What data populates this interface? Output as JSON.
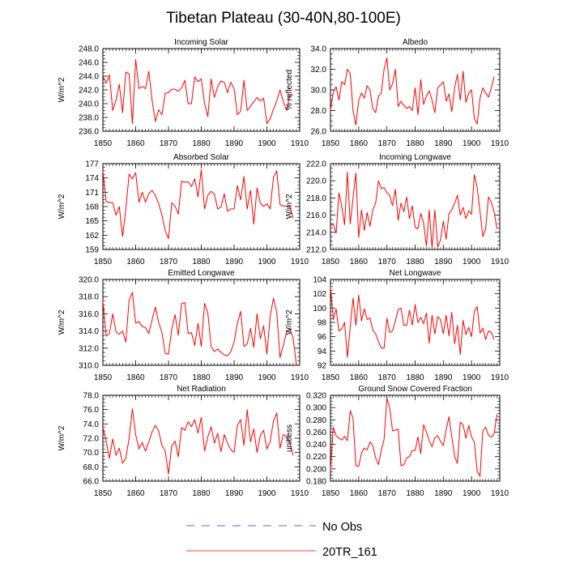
{
  "figure_title": "Tibetan Plateau (30-40N,80-100E)",
  "colors": {
    "model": "#ff0000",
    "obs": "#3333cc",
    "frame": "#000000"
  },
  "legend": {
    "obs_label": "No Obs",
    "model_label": "20TR_161"
  },
  "chart_data": [
    {
      "type": "line",
      "title": "Incoming Solar",
      "ylabel": "W/m^2",
      "xlim": [
        1850,
        1910
      ],
      "ylim": [
        236,
        248
      ],
      "yticks": [
        "236.0",
        "238.0",
        "240.0",
        "242.0",
        "244.0",
        "246.0",
        "248.0"
      ],
      "xticks": [
        "1850",
        "1860",
        "1870",
        "1880",
        "1890",
        "1900",
        "1910"
      ],
      "x_start": 1850,
      "series": [
        {
          "name": "20TR_161",
          "values": [
            244.0,
            243.0,
            244.2,
            239.0,
            240.5,
            242.8,
            238.7,
            244.6,
            244.3,
            237.1,
            246.4,
            242.2,
            242.5,
            242.2,
            244.7,
            240.5,
            237.4,
            239.1,
            238.4,
            241.5,
            241.6,
            242.1,
            242.1,
            241.8,
            242.3,
            243.4,
            240.0,
            240.0,
            243.9,
            243.2,
            243.6,
            240.0,
            238.1,
            243.6,
            240.9,
            242.5,
            243.3,
            243.1,
            241.6,
            243.1,
            242.2,
            238.4,
            238.9,
            243.4,
            239.0,
            239.6,
            240.3,
            240.9,
            240.4,
            240.8,
            237.1,
            237.8,
            239.2,
            240.4,
            242.0,
            240.3,
            239.0,
            241.3,
            241.3
          ]
        }
      ]
    },
    {
      "type": "line",
      "title": "Albedo",
      "ylabel": "% reflected",
      "xlim": [
        1850,
        1910
      ],
      "ylim": [
        26,
        34
      ],
      "yticks": [
        "26.0",
        "28.0",
        "30.0",
        "32.0",
        "34.0"
      ],
      "xticks": [
        "1850",
        "1860",
        "1870",
        "1880",
        "1890",
        "1900",
        "1910"
      ],
      "x_start": 1850,
      "series": [
        {
          "name": "20TR_161",
          "values": [
            28.0,
            29.8,
            30.3,
            29.0,
            30.8,
            30.5,
            32.0,
            31.6,
            28.0,
            26.6,
            29.0,
            29.7,
            29.2,
            30.4,
            30.0,
            28.2,
            27.8,
            29.4,
            29.7,
            32.0,
            33.1,
            30.0,
            30.6,
            32.0,
            28.4,
            28.9,
            28.5,
            28.2,
            28.4,
            28.0,
            30.2,
            27.6,
            31.0,
            28.6,
            29.4,
            29.9,
            29.0,
            27.8,
            30.2,
            30.5,
            30.8,
            28.9,
            29.6,
            27.9,
            30.2,
            31.5,
            29.0,
            31.8,
            28.8,
            29.7,
            30.0,
            27.2,
            26.7,
            29.2,
            30.2,
            29.7,
            29.3,
            30.2,
            31.3
          ]
        }
      ]
    },
    {
      "type": "line",
      "title": "Absorbed Solar",
      "ylabel": "W/m^2",
      "xlim": [
        1850,
        1910
      ],
      "ylim": [
        159,
        177
      ],
      "yticks": [
        "159",
        "162",
        "165",
        "168",
        "171",
        "174",
        "177"
      ],
      "xticks": [
        "1850",
        "1860",
        "1870",
        "1880",
        "1890",
        "1900",
        "1910"
      ],
      "x_start": 1850,
      "series": [
        {
          "name": "20TR_161",
          "values": [
            175.5,
            169.1,
            168.8,
            168.8,
            166.2,
            168.0,
            161.7,
            167.5,
            174.8,
            173.8,
            175.1,
            168.9,
            171.0,
            168.9,
            170.7,
            171.4,
            170.3,
            168.6,
            166.2,
            162.9,
            161.3,
            168.8,
            168.1,
            166.4,
            173.3,
            173.1,
            173.2,
            172.2,
            173.8,
            170.0,
            175.7,
            167.5,
            170.4,
            171.2,
            170.6,
            167.5,
            167.9,
            170.7,
            167.0,
            167.5,
            167.5,
            172.4,
            169.4,
            174.3,
            167.5,
            171.4,
            164.3,
            171.9,
            168.7,
            168.0,
            168.6,
            167.5,
            174.1,
            175.5,
            168.4,
            168.1,
            168.1,
            168.0,
            165.6
          ]
        }
      ]
    },
    {
      "type": "line",
      "title": "Incoming Longwave",
      "ylabel": "W/m^2",
      "xlim": [
        1850,
        1910
      ],
      "ylim": [
        212,
        222
      ],
      "yticks": [
        "212.0",
        "214.0",
        "216.0",
        "218.0",
        "220.0",
        "222.0"
      ],
      "xticks": [
        "1850",
        "1860",
        "1870",
        "1880",
        "1890",
        "1900",
        "1910"
      ],
      "x_start": 1850,
      "series": [
        {
          "name": "20TR_161",
          "values": [
            214.8,
            215.0,
            213.9,
            218.6,
            217.0,
            214.9,
            221.0,
            215.0,
            218.0,
            220.9,
            213.4,
            216.6,
            214.2,
            216.3,
            214.7,
            216.6,
            217.4,
            220.0,
            219.1,
            219.2,
            218.6,
            218.3,
            217.1,
            219.0,
            215.4,
            217.4,
            216.4,
            218.1,
            215.6,
            217.1,
            214.6,
            214.4,
            216.2,
            215.1,
            212.4,
            216.6,
            212.2,
            216.6,
            212.3,
            213.1,
            215.3,
            213.2,
            216.2,
            216.6,
            217.4,
            218.3,
            216.0,
            216.9,
            215.6,
            216.5,
            216.1,
            220.7,
            219.2,
            216.4,
            213.5,
            214.4,
            218.1,
            217.5,
            216.4,
            214.4
          ]
        }
      ]
    },
    {
      "type": "line",
      "title": "Emitted Longwave",
      "ylabel": "W/m^2",
      "xlim": [
        1850,
        1910
      ],
      "ylim": [
        310,
        320
      ],
      "yticks": [
        "310.0",
        "312.0",
        "314.0",
        "316.0",
        "318.0",
        "320.0"
      ],
      "xticks": [
        "1850",
        "1860",
        "1870",
        "1880",
        "1890",
        "1900",
        "1910"
      ],
      "x_start": 1850,
      "series": [
        {
          "name": "20TR_161",
          "values": [
            317.5,
            313.4,
            313.7,
            316.0,
            313.9,
            313.6,
            314.0,
            312.7,
            317.6,
            318.5,
            314.9,
            315.1,
            314.5,
            314.4,
            313.7,
            315.3,
            316.8,
            315.0,
            313.8,
            311.4,
            311.3,
            314.2,
            315.9,
            313.5,
            317.2,
            317.3,
            313.7,
            313.8,
            312.3,
            314.9,
            312.2,
            317.2,
            316.1,
            312.2,
            311.6,
            311.9,
            311.5,
            311.2,
            311.1,
            311.6,
            312.7,
            314.9,
            316.3,
            312.2,
            312.5,
            314.3,
            312.1,
            316.0,
            313.1,
            314.6,
            311.3,
            315.7,
            317.8,
            316.2,
            310.9,
            312.3,
            313.9,
            314.2,
            313.2,
            310.0
          ]
        }
      ]
    },
    {
      "type": "line",
      "title": "Net Longwave",
      "ylabel": "W/m^2",
      "xlim": [
        1850,
        1910
      ],
      "ylim": [
        92,
        104
      ],
      "yticks": [
        "92",
        "94",
        "96",
        "98",
        "100",
        "102",
        "104"
      ],
      "xticks": [
        "1850",
        "1860",
        "1870",
        "1880",
        "1890",
        "1900",
        "1910"
      ],
      "x_start": 1850,
      "series": [
        {
          "name": "20TR_161",
          "values": [
            103.0,
            98.4,
            99.9,
            96.8,
            97.1,
            98.0,
            93.1,
            97.4,
            101.4,
            97.6,
            101.8,
            98.2,
            99.9,
            98.4,
            98.6,
            96.9,
            96.4,
            95.3,
            94.4,
            94.4,
            98.6,
            96.6,
            96.8,
            98.2,
            99.8,
            100.0,
            97.6,
            97.6,
            99.7,
            97.6,
            100.5,
            98.0,
            98.7,
            97.8,
            99.3,
            95.1,
            99.0,
            96.4,
            98.8,
            98.4,
            96.4,
            99.0,
            96.1,
            99.4,
            95.0,
            97.6,
            93.5,
            98.3,
            96.3,
            97.3,
            96.0,
            99.6,
            100.2,
            96.5,
            97.2,
            95.6,
            96.8,
            96.6,
            95.6
          ]
        }
      ]
    },
    {
      "type": "line",
      "title": "Net Radiation",
      "ylabel": "W/m^2",
      "xlim": [
        1850,
        1910
      ],
      "ylim": [
        66,
        78
      ],
      "yticks": [
        "66.0",
        "68.0",
        "70.0",
        "72.0",
        "74.0",
        "76.0",
        "78.0"
      ],
      "xticks": [
        "1850",
        "1860",
        "1870",
        "1880",
        "1890",
        "1900",
        "1910"
      ],
      "x_start": 1850,
      "series": [
        {
          "name": "20TR_161",
          "values": [
            73.5,
            71.6,
            69.2,
            71.9,
            69.6,
            70.6,
            68.5,
            69.2,
            72.0,
            76.1,
            72.5,
            70.5,
            71.4,
            70.2,
            71.5,
            72.9,
            73.8,
            73.0,
            71.0,
            70.2,
            67.0,
            70.9,
            71.6,
            69.4,
            73.5,
            73.1,
            74.3,
            73.6,
            74.6,
            72.7,
            74.9,
            70.2,
            72.2,
            73.6,
            71.3,
            72.7,
            70.1,
            72.5,
            71.3,
            70.4,
            70.0,
            73.8,
            74.6,
            71.0,
            76.0,
            71.5,
            73.3,
            70.0,
            72.4,
            73.1,
            70.5,
            71.5,
            74.4,
            75.5,
            70.6,
            72.5,
            72.3,
            71.4,
            69.6
          ]
        }
      ]
    },
    {
      "type": "line",
      "title": "Ground Snow Covered Fraction",
      "ylabel": "unitless",
      "xlim": [
        1850,
        1910
      ],
      "ylim": [
        0.18,
        0.32
      ],
      "yticks": [
        "0.180",
        "0.200",
        "0.220",
        "0.240",
        "0.260",
        "0.280",
        "0.300",
        "0.320"
      ],
      "xticks": [
        "1850",
        "1860",
        "1870",
        "1880",
        "1890",
        "1900",
        "1910"
      ],
      "x_start": 1850,
      "series": [
        {
          "name": "20TR_161",
          "values": [
            0.198,
            0.268,
            0.254,
            0.25,
            0.247,
            0.253,
            0.246,
            0.295,
            0.282,
            0.205,
            0.204,
            0.226,
            0.234,
            0.231,
            0.244,
            0.238,
            0.218,
            0.207,
            0.23,
            0.248,
            0.315,
            0.3,
            0.262,
            0.263,
            0.265,
            0.205,
            0.207,
            0.218,
            0.22,
            0.23,
            0.23,
            0.252,
            0.225,
            0.272,
            0.26,
            0.246,
            0.236,
            0.251,
            0.254,
            0.245,
            0.238,
            0.264,
            0.285,
            0.252,
            0.22,
            0.209,
            0.276,
            0.272,
            0.25,
            0.271,
            0.252,
            0.243,
            0.196,
            0.188,
            0.262,
            0.268,
            0.255,
            0.252,
            0.257,
            0.289
          ]
        }
      ]
    }
  ]
}
